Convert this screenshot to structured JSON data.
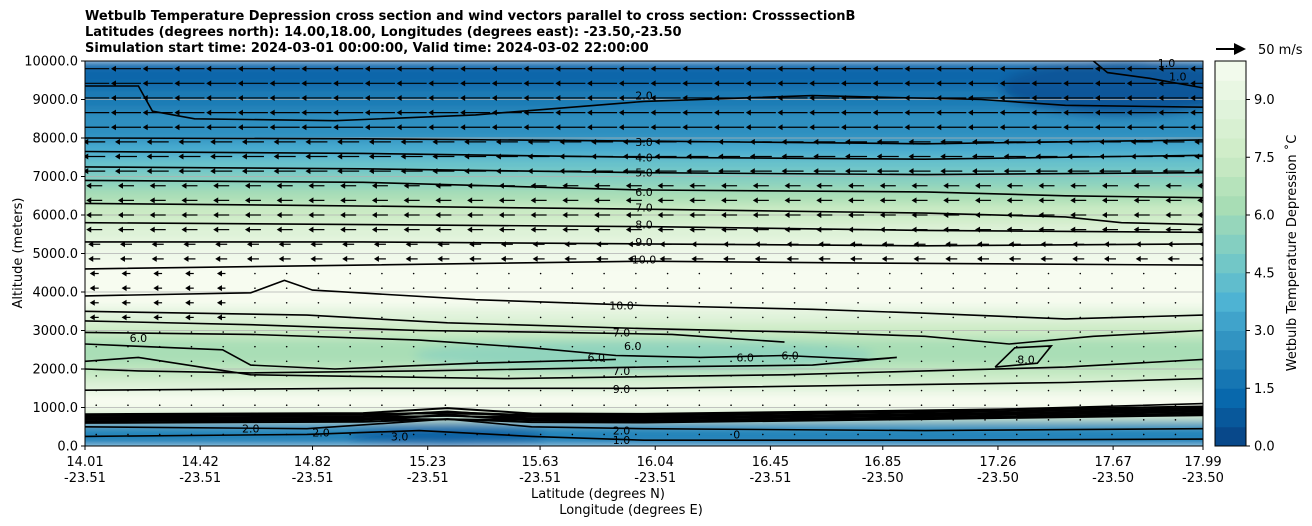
{
  "titles": [
    "Wetbulb Temperature Depression cross section and wind vectors parallel to cross section: CrosssectionB",
    "Latitudes (degrees north): 14.00,18.00, Longitudes (degrees east): -23.50,-23.50",
    "Simulation start time: 2024-03-01 00:00:00, Valid time: 2024-03-02 22:00:00"
  ],
  "chart_data": {
    "type": "contour",
    "ylabel": "Altitude (meters)",
    "xlabel_lat": "Latitude (degrees N)",
    "xlabel_lon": "Longitude (degrees E)",
    "ylim": [
      0,
      10000
    ],
    "xlim": [
      14.01,
      17.99
    ],
    "y_ticks": [
      "0.0",
      "1000.0",
      "2000.0",
      "3000.0",
      "4000.0",
      "5000.0",
      "6000.0",
      "7000.0",
      "8000.0",
      "9000.0",
      "10000.0"
    ],
    "y_tick_values": [
      0,
      1000,
      2000,
      3000,
      4000,
      5000,
      6000,
      7000,
      8000,
      9000,
      10000
    ],
    "x_ticks": [
      {
        "lat": "14.01",
        "lon": "-23.51",
        "value": 14.01
      },
      {
        "lat": "14.42",
        "lon": "-23.51",
        "value": 14.42
      },
      {
        "lat": "14.82",
        "lon": "-23.51",
        "value": 14.82
      },
      {
        "lat": "15.23",
        "lon": "-23.51",
        "value": 15.23
      },
      {
        "lat": "15.63",
        "lon": "-23.51",
        "value": 15.63
      },
      {
        "lat": "16.04",
        "lon": "-23.51",
        "value": 16.04
      },
      {
        "lat": "16.45",
        "lon": "-23.51",
        "value": 16.45
      },
      {
        "lat": "16.85",
        "lon": "-23.50",
        "value": 16.85
      },
      {
        "lat": "17.26",
        "lon": "-23.50",
        "value": 17.26
      },
      {
        "lat": "17.67",
        "lon": "-23.50",
        "value": 17.67
      },
      {
        "lat": "17.99",
        "lon": "-23.50",
        "value": 17.99
      }
    ],
    "grid": "horizontal",
    "colorbar": {
      "label": "Wetbulb Temperature Depression ˚C",
      "ticks": [
        "0.0",
        "1.5",
        "3.0",
        "4.5",
        "6.0",
        "7.5",
        "9.0"
      ],
      "tick_values": [
        0,
        1.5,
        3,
        4.5,
        6,
        7.5,
        9
      ],
      "range": [
        0,
        10
      ],
      "levels": 20,
      "cmap": "GnBu_r",
      "color_stops": [
        "#084081",
        "#0868ac",
        "#2b8cbe",
        "#4eb3d3",
        "#7bccc4",
        "#a8ddb5",
        "#ccebc5",
        "#e0f3db",
        "#f7fcf0"
      ]
    },
    "wind_key": "50 m/s",
    "contour_labels": [
      {
        "text": "1.0",
        "x": 17.86,
        "y": 9950
      },
      {
        "text": "1.0",
        "x": 17.9,
        "y": 9600
      },
      {
        "text": "2.0",
        "x": 16.0,
        "y": 9100
      },
      {
        "text": "3.0",
        "x": 16.0,
        "y": 7900
      },
      {
        "text": "4.0",
        "x": 16.0,
        "y": 7500
      },
      {
        "text": "5.0",
        "x": 16.0,
        "y": 7100
      },
      {
        "text": "6.0",
        "x": 16.0,
        "y": 6600
      },
      {
        "text": "7.0",
        "x": 16.0,
        "y": 6200
      },
      {
        "text": "8.0",
        "x": 16.0,
        "y": 5750
      },
      {
        "text": "9.0",
        "x": 16.0,
        "y": 5300
      },
      {
        "text": "10.0",
        "x": 16.0,
        "y": 4850
      },
      {
        "text": "10.0",
        "x": 15.92,
        "y": 3650
      },
      {
        "text": "7.0",
        "x": 15.92,
        "y": 2950
      },
      {
        "text": "6.0",
        "x": 14.2,
        "y": 2800
      },
      {
        "text": "6.0",
        "x": 15.83,
        "y": 2300
      },
      {
        "text": "6.0",
        "x": 15.96,
        "y": 2600
      },
      {
        "text": "6.0",
        "x": 16.36,
        "y": 2300
      },
      {
        "text": "6.0",
        "x": 16.52,
        "y": 2350
      },
      {
        "text": "7.0",
        "x": 15.92,
        "y": 1950
      },
      {
        "text": "9.0",
        "x": 15.92,
        "y": 1480
      },
      {
        "text": "8.0",
        "x": 17.36,
        "y": 2250
      },
      {
        "text": "1.0",
        "x": 15.92,
        "y": 150
      },
      {
        "text": "2.0",
        "x": 15.92,
        "y": 400
      },
      {
        "text": "0",
        "x": 16.33,
        "y": 300
      },
      {
        "text": "2.0",
        "x": 14.6,
        "y": 450
      },
      {
        "text": "2.0",
        "x": 14.85,
        "y": 350
      },
      {
        "text": "3.0",
        "x": 15.13,
        "y": 250
      }
    ]
  }
}
